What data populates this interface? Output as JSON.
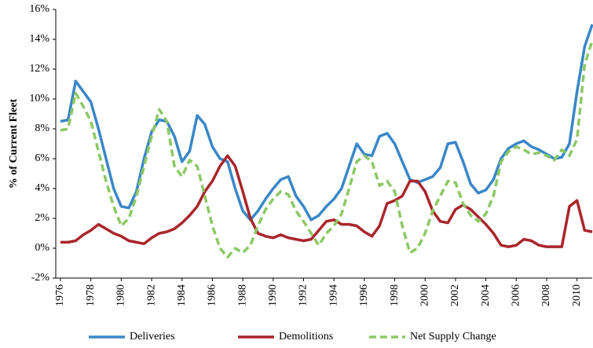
{
  "chart_data": {
    "type": "line",
    "y_label": "% of Current Fleet",
    "x": [
      1976,
      1976.5,
      1977,
      1977.5,
      1978,
      1978.5,
      1979,
      1979.5,
      1980,
      1980.5,
      1981,
      1981.5,
      1982,
      1982.5,
      1983,
      1983.5,
      1984,
      1984.5,
      1985,
      1985.5,
      1986,
      1986.5,
      1987,
      1987.5,
      1988,
      1988.5,
      1989,
      1989.5,
      1990,
      1990.5,
      1991,
      1991.5,
      1992,
      1992.5,
      1993,
      1993.5,
      1994,
      1994.5,
      1995,
      1995.5,
      1996,
      1996.5,
      1997,
      1997.5,
      1998,
      1998.5,
      1999,
      1999.5,
      2000,
      2000.5,
      2001,
      2001.5,
      2002,
      2002.5,
      2003,
      2003.5,
      2004,
      2004.5,
      2005,
      2005.5,
      2006,
      2006.5,
      2007,
      2007.5,
      2008,
      2008.5,
      2009,
      2009.5,
      2010,
      2010.5,
      2011
    ],
    "series": [
      {
        "name": "Deliveries",
        "color": "#3a87c8",
        "dashed": false,
        "values": [
          8.5,
          8.6,
          11.2,
          10.5,
          9.8,
          8.0,
          6.0,
          4.0,
          2.8,
          2.7,
          3.8,
          6.0,
          7.8,
          8.6,
          8.5,
          7.5,
          5.8,
          6.5,
          8.9,
          8.3,
          6.8,
          6.0,
          5.8,
          4.0,
          2.5,
          1.9,
          2.5,
          3.3,
          4.0,
          4.6,
          4.8,
          3.5,
          2.8,
          1.9,
          2.2,
          2.8,
          3.3,
          4.0,
          5.5,
          7.0,
          6.3,
          6.2,
          7.5,
          7.7,
          7.0,
          5.8,
          4.6,
          4.4,
          4.6,
          4.8,
          5.4,
          7.0,
          7.1,
          5.8,
          4.3,
          3.7,
          3.9,
          4.6,
          6.0,
          6.7,
          7.0,
          7.2,
          6.8,
          6.6,
          6.3,
          6.0,
          6.1,
          7.0,
          10.5,
          13.5,
          15.0
        ]
      },
      {
        "name": "Demolitions",
        "color": "#a8262b",
        "dashed": false,
        "values": [
          0.4,
          0.4,
          0.5,
          0.9,
          1.2,
          1.6,
          1.3,
          1.0,
          0.8,
          0.5,
          0.4,
          0.3,
          0.7,
          1.0,
          1.1,
          1.3,
          1.7,
          2.2,
          2.8,
          3.8,
          4.5,
          5.5,
          6.2,
          5.5,
          3.8,
          2.0,
          1.0,
          0.8,
          0.7,
          0.9,
          0.7,
          0.6,
          0.5,
          0.6,
          1.2,
          1.8,
          1.9,
          1.6,
          1.6,
          1.5,
          1.1,
          0.8,
          1.5,
          3.0,
          3.2,
          3.5,
          4.5,
          4.5,
          3.8,
          2.5,
          1.8,
          1.7,
          2.6,
          2.9,
          2.6,
          2.1,
          1.6,
          1.0,
          0.2,
          0.1,
          0.2,
          0.6,
          0.5,
          0.2,
          0.1,
          0.1,
          0.1,
          2.8,
          3.2,
          1.2,
          1.1
        ]
      },
      {
        "name": "Net Supply Change",
        "color": "#8cc864",
        "dashed": true,
        "values": [
          7.9,
          8.0,
          10.4,
          9.5,
          8.5,
          6.5,
          4.5,
          2.8,
          1.5,
          2.0,
          3.5,
          5.5,
          7.5,
          9.3,
          8.5,
          5.5,
          4.8,
          5.9,
          5.5,
          3.5,
          1.5,
          0.0,
          -0.6,
          0.0,
          -0.3,
          0.2,
          1.5,
          2.6,
          3.3,
          3.8,
          3.6,
          2.5,
          1.8,
          1.0,
          0.2,
          1.0,
          1.5,
          2.3,
          4.0,
          5.8,
          6.2,
          5.8,
          4.2,
          4.5,
          3.8,
          1.5,
          -0.3,
          0.0,
          1.0,
          2.5,
          3.5,
          4.5,
          4.4,
          3.0,
          2.2,
          1.8,
          2.3,
          3.5,
          5.8,
          6.5,
          6.8,
          6.6,
          6.3,
          6.4,
          6.2,
          5.9,
          6.6,
          6.2,
          7.3,
          12.3,
          13.9
        ]
      }
    ],
    "xlim": [
      1976,
      2011
    ],
    "xticks": [
      1976,
      1978,
      1980,
      1982,
      1984,
      1986,
      1988,
      1990,
      1992,
      1994,
      1996,
      1998,
      2000,
      2002,
      2004,
      2006,
      2008,
      2010
    ],
    "ylim": [
      -2,
      16
    ],
    "yticks": [
      {
        "value": -2,
        "label": "-2%"
      },
      {
        "value": 0,
        "label": "0%"
      },
      {
        "value": 2,
        "label": "2%"
      },
      {
        "value": 4,
        "label": "4%"
      },
      {
        "value": 6,
        "label": "6%"
      },
      {
        "value": 8,
        "label": "8%"
      },
      {
        "value": 10,
        "label": "10%"
      },
      {
        "value": 12,
        "label": "12%"
      },
      {
        "value": 14,
        "label": "14%"
      },
      {
        "value": 16,
        "label": "16%"
      }
    ],
    "grid": false,
    "legend": "bottom"
  }
}
